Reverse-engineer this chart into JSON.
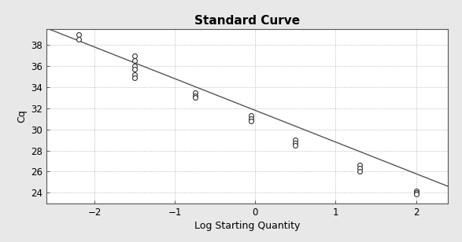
{
  "title": "Standard Curve",
  "xlabel": "Log Starting Quantity",
  "ylabel": "Cq",
  "xlim": [
    -2.6,
    2.4
  ],
  "ylim": [
    23.0,
    39.5
  ],
  "xticks": [
    -2,
    -1,
    0,
    1,
    2
  ],
  "yticks": [
    24,
    26,
    28,
    30,
    32,
    34,
    36,
    38
  ],
  "data_points": [
    [
      -2.2,
      38.5
    ],
    [
      -2.2,
      39.0
    ],
    [
      -1.5,
      37.0
    ],
    [
      -1.5,
      36.5
    ],
    [
      -1.5,
      36.0
    ],
    [
      -1.5,
      35.7
    ],
    [
      -1.5,
      35.2
    ],
    [
      -1.5,
      34.9
    ],
    [
      -0.75,
      33.5
    ],
    [
      -0.75,
      33.2
    ],
    [
      -0.75,
      33.0
    ],
    [
      -0.05,
      31.3
    ],
    [
      -0.05,
      31.0
    ],
    [
      -0.05,
      30.8
    ],
    [
      0.5,
      29.0
    ],
    [
      0.5,
      28.7
    ],
    [
      0.5,
      28.5
    ],
    [
      1.3,
      26.6
    ],
    [
      1.3,
      26.3
    ],
    [
      1.3,
      26.0
    ],
    [
      2.0,
      24.2
    ],
    [
      2.0,
      24.05
    ],
    [
      2.0,
      23.85
    ]
  ],
  "line_x": [
    -2.6,
    2.4
  ],
  "line_slope": -3.0,
  "line_intercept": 31.8,
  "marker_facecolor": "white",
  "marker_edge_color": "#333333",
  "line_color": "#555555",
  "bg_color": "#ffffff",
  "outer_bg": "#e8e8e8",
  "grid_color": "#aaaaaa",
  "title_fontsize": 11,
  "label_fontsize": 9,
  "tick_fontsize": 8.5
}
